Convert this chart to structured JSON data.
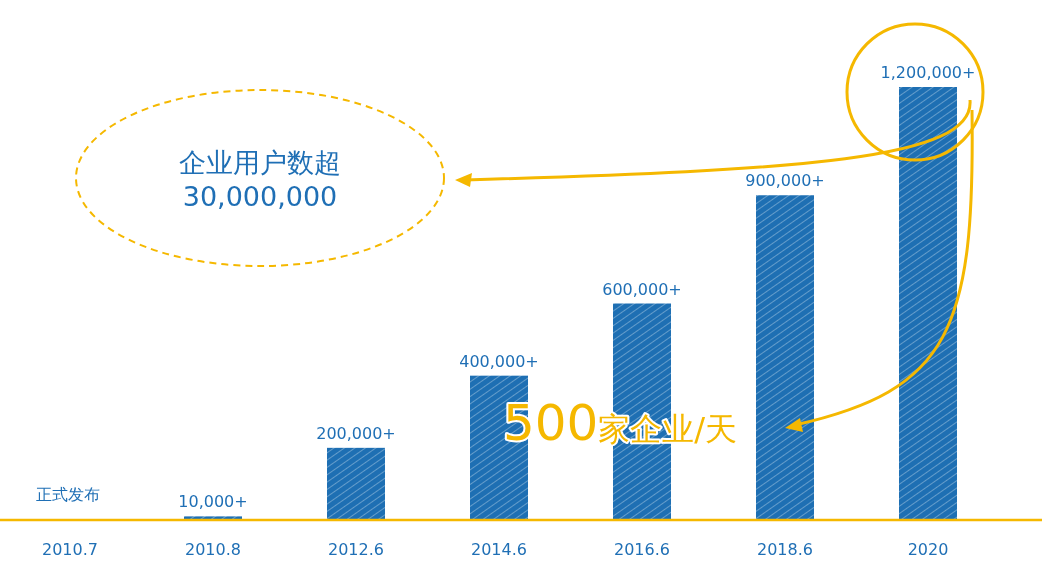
{
  "chart_data": {
    "type": "bar",
    "categories": [
      "2010.7",
      "2010.8",
      "2012.6",
      "2014.6",
      "2016.6",
      "2018.6",
      "2020"
    ],
    "values": [
      null,
      10000,
      200000,
      400000,
      600000,
      900000,
      1200000
    ],
    "value_labels": [
      null,
      "10,000+",
      "200,000+",
      "400,000+",
      "600,000+",
      "900,000+",
      "1,200,000+"
    ],
    "color": "#1e6fb3",
    "annotations": [
      "正式发布",
      "企业用户数超\n30,000,000",
      "500家企业/天"
    ]
  }
}
